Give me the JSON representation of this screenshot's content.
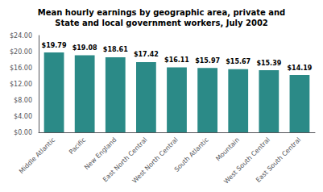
{
  "chart_data": {
    "type": "bar",
    "title": "Mean hourly earnings by geographic area, private and\nState and local government workers, July 2002",
    "categories": [
      "Middle Atlantic",
      "Pacific",
      "New England",
      "East North Central",
      "West North Central",
      "South Atlantic",
      "Mountain",
      "West South Central",
      "East South Central"
    ],
    "values": [
      19.79,
      19.08,
      18.61,
      17.42,
      16.11,
      15.97,
      15.67,
      15.39,
      14.19
    ],
    "value_labels": [
      "$19.79",
      "$19.08",
      "$18.61",
      "$17.42",
      "$16.11",
      "$15.97",
      "$15.67",
      "$15.39",
      "$14.19"
    ],
    "data_labels": true,
    "color": "#2b8a87",
    "ylim": [
      0,
      24
    ],
    "yticks": [
      {
        "value": 0,
        "label": "$0.00"
      },
      {
        "value": 4,
        "label": "$4.00"
      },
      {
        "value": 8,
        "label": "$8.00"
      },
      {
        "value": 12,
        "label": "$12.00"
      },
      {
        "value": 16,
        "label": "$16.00"
      },
      {
        "value": 20,
        "label": "$20.00"
      },
      {
        "value": 24,
        "label": "$24.00"
      }
    ],
    "grid": false
  }
}
